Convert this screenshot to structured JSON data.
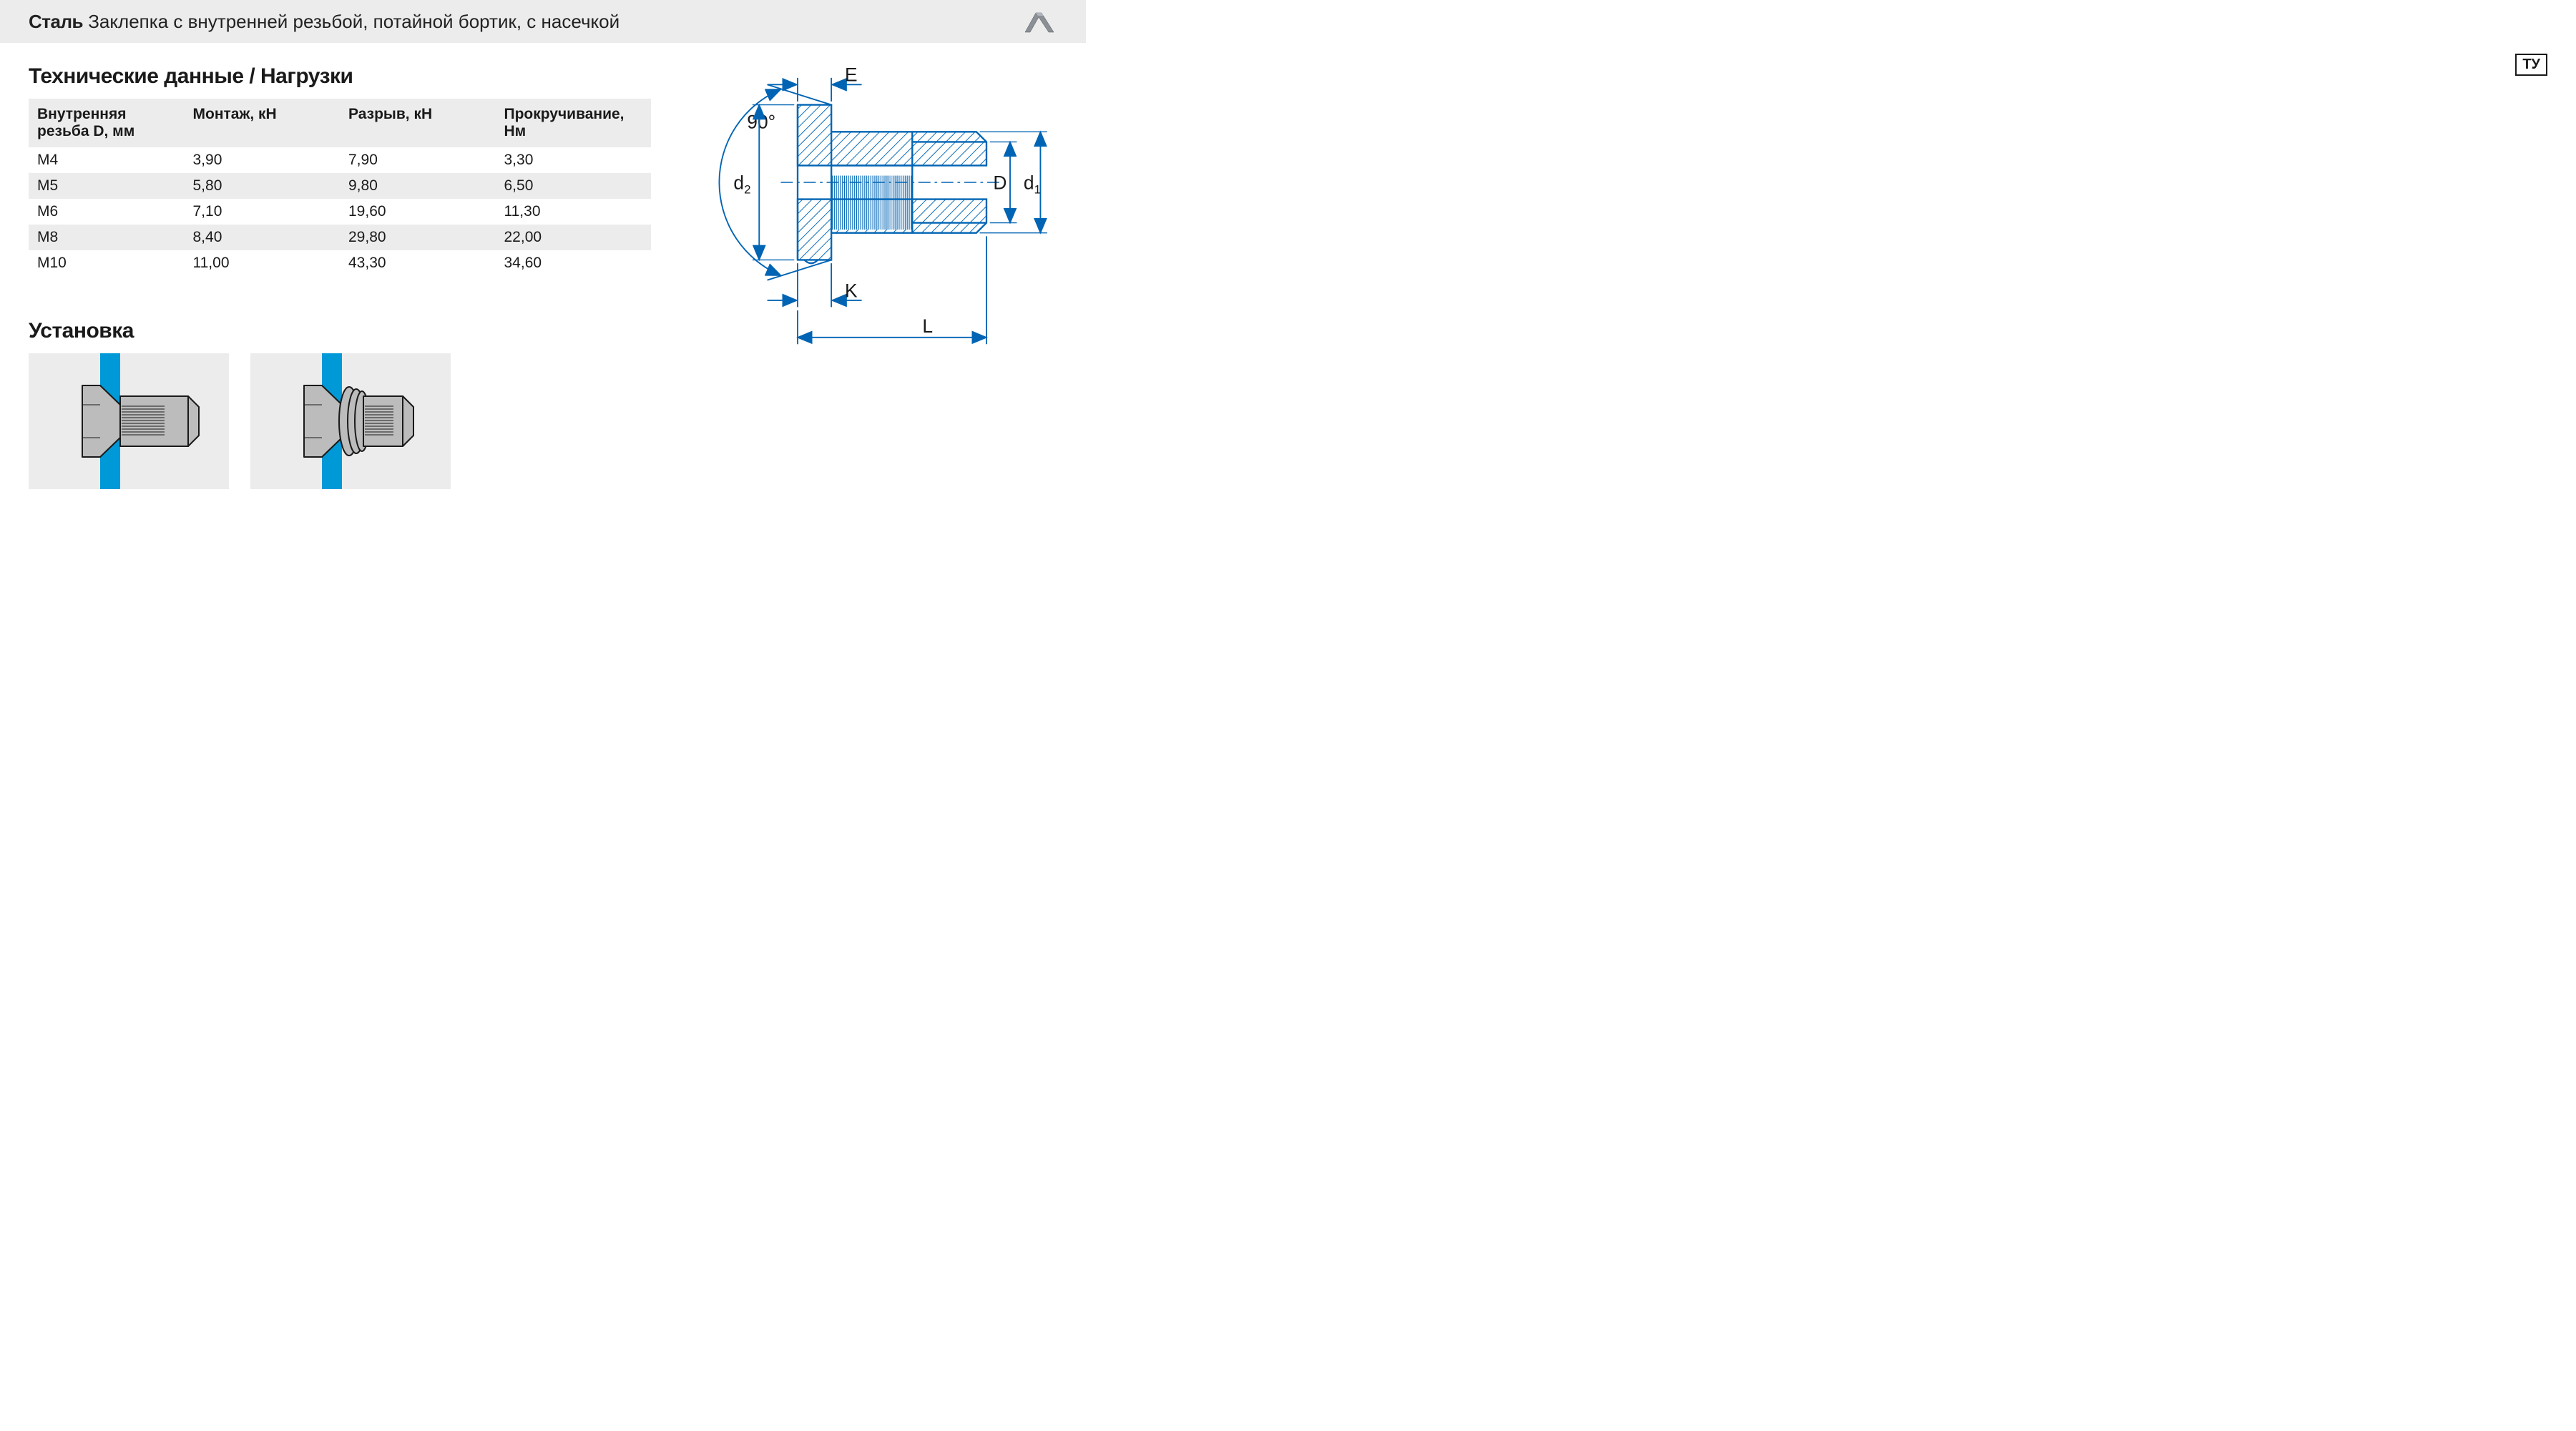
{
  "header": {
    "material": "Сталь",
    "description": "Заклепка с внутренней резьбой, потайной бортик, с насечкой",
    "badge": "ТУ"
  },
  "colors": {
    "page_bg": "#ffffff",
    "panel_bg": "#ececec",
    "text": "#1a1a1a",
    "diagram_blue": "#0099d8",
    "diagram_fill": "#b9b9b9",
    "diagram_stroke": "#1a1a1a",
    "hatch": "#1a1a1a"
  },
  "tech_data": {
    "title": "Технические данные / Нагрузки",
    "columns": [
      "Внутренняя резьба D, мм",
      "Монтаж, кН",
      "Разрыв, кН",
      "Прокручивание, Нм"
    ],
    "rows": [
      [
        "M4",
        "3,90",
        "7,90",
        "3,30"
      ],
      [
        "M5",
        "5,80",
        "9,80",
        "6,50"
      ],
      [
        "M6",
        "7,10",
        "19,60",
        "11,30"
      ],
      [
        "M8",
        "8,40",
        "29,80",
        "22,00"
      ],
      [
        "M10",
        "11,00",
        "43,30",
        "34,60"
      ]
    ]
  },
  "dimension_diagram": {
    "angle_label": "90°",
    "labels": {
      "d2": "d₂",
      "d1": "d₁",
      "D": "D",
      "E": "E",
      "K": "K",
      "L": "L"
    },
    "stroke_color": "#0064b4",
    "stroke_width": 2,
    "font_size": 26,
    "font_family": "Arial"
  },
  "installation": {
    "title": "Установка",
    "panels": 2,
    "plate_color": "#0099d8",
    "rivet_fill": "#b9b9b9",
    "rivet_stroke": "#1a1a1a"
  }
}
